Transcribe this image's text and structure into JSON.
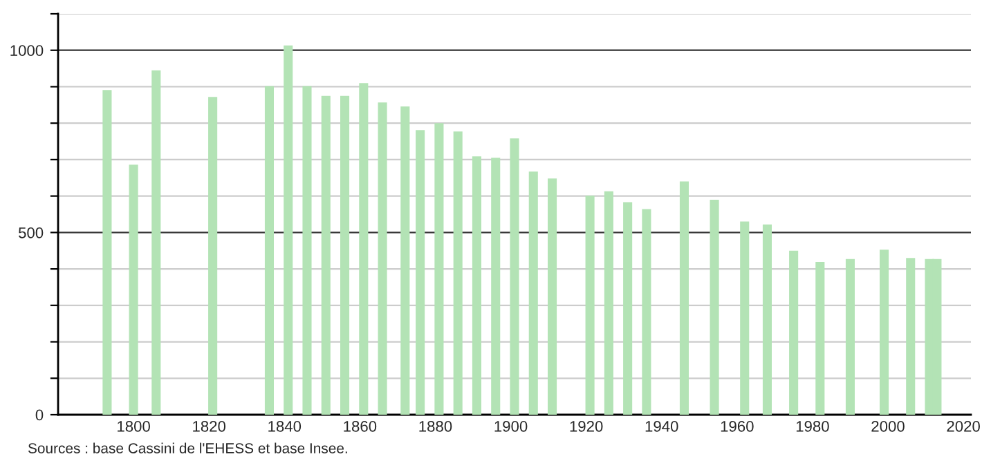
{
  "chart_data": {
    "type": "bar",
    "x": [
      1793,
      1800,
      1806,
      1821,
      1836,
      1841,
      1846,
      1851,
      1856,
      1861,
      1866,
      1872,
      1876,
      1881,
      1886,
      1891,
      1896,
      1901,
      1906,
      1911,
      1921,
      1926,
      1931,
      1936,
      1946,
      1954,
      1962,
      1968,
      1975,
      1982,
      1990,
      1999,
      2006,
      2011,
      2013
    ],
    "values": [
      891,
      686,
      945,
      872,
      902,
      1013,
      902,
      875,
      875,
      910,
      857,
      846,
      781,
      800,
      777,
      709,
      705,
      758,
      667,
      648,
      601,
      613,
      583,
      564,
      640,
      590,
      530,
      522,
      450,
      419,
      427,
      453,
      430,
      427,
      427
    ],
    "color": "#b3e3b5",
    "xlim": [
      1780,
      2022
    ],
    "xticks": [
      1800,
      1820,
      1840,
      1860,
      1880,
      1900,
      1920,
      1940,
      1960,
      1980,
      2000,
      2020
    ],
    "ylim": [
      0,
      1100
    ],
    "yticks": [
      0,
      {
        "value": 100,
        "label": null
      },
      {
        "value": 200,
        "label": null
      },
      {
        "value": 300,
        "label": null
      },
      {
        "value": 400,
        "label": null
      },
      500,
      {
        "value": 600,
        "label": null
      },
      {
        "value": 700,
        "label": null
      },
      {
        "value": 800,
        "label": null
      },
      {
        "value": 900,
        "label": null
      },
      1000,
      {
        "value": 1100,
        "label": null
      }
    ],
    "grid": "y",
    "annotations": [
      "Sources : base Cassini de l'EHESS et base Insee."
    ]
  }
}
